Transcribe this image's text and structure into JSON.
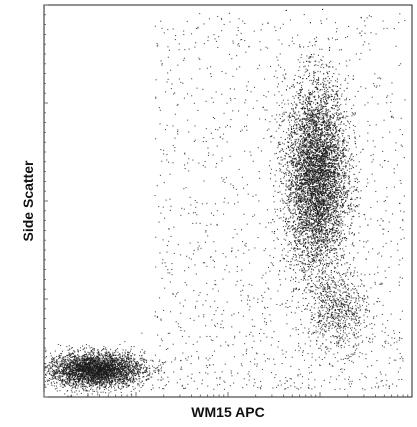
{
  "chart_data": {
    "type": "scatter",
    "title": "",
    "xlabel": "WM15 APC",
    "ylabel": "Side Scatter",
    "xscale": "log",
    "xlim": [
      0,
      1
    ],
    "ylim": [
      0,
      1
    ],
    "grid": false,
    "legend": "none",
    "point_color": "#1a1a1a",
    "populations": [
      {
        "description": "WM15-negative, low side scatter",
        "center": [
          0.14,
          0.07
        ],
        "spread": [
          0.065,
          0.022
        ],
        "count": 3800
      },
      {
        "description": "WM15-positive, high side scatter",
        "center": [
          0.74,
          0.56
        ],
        "spread": [
          0.042,
          0.12
        ],
        "count": 6500
      },
      {
        "description": "WM15-positive, intermediate side scatter",
        "center": [
          0.8,
          0.22
        ],
        "spread": [
          0.04,
          0.05
        ],
        "count": 700
      }
    ],
    "background_events": 1400
  }
}
